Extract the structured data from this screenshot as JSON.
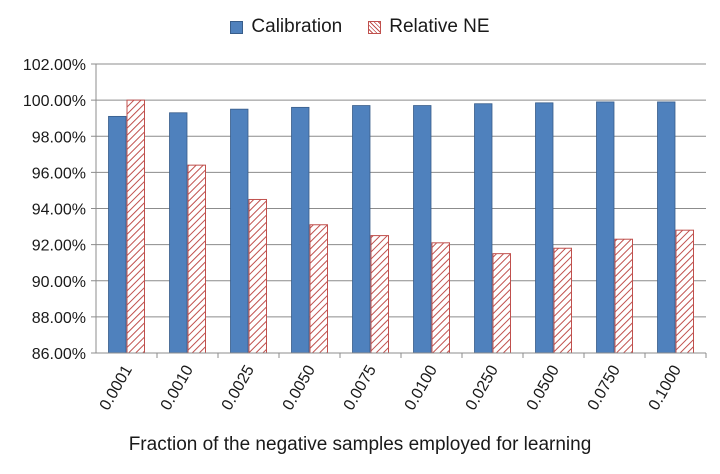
{
  "chart_data": {
    "type": "bar",
    "title": "",
    "xlabel": "Fraction of the negative samples employed for learning",
    "ylabel": "",
    "ylim": [
      86,
      102
    ],
    "y_step": 2,
    "y_tick_labels": [
      "86.00%",
      "88.00%",
      "90.00%",
      "92.00%",
      "94.00%",
      "96.00%",
      "98.00%",
      "100.00%",
      "102.00%"
    ],
    "categories": [
      "0.0001",
      "0.0010",
      "0.0025",
      "0.0050",
      "0.0075",
      "0.0100",
      "0.0250",
      "0.0500",
      "0.0750",
      "0.1000"
    ],
    "series": [
      {
        "name": "Calibration",
        "color": "#4f81bd",
        "values": [
          99.1,
          99.3,
          99.5,
          99.6,
          99.7,
          99.7,
          99.8,
          99.85,
          99.9,
          99.9
        ]
      },
      {
        "name": "Relative NE",
        "color": "#c0504d",
        "values": [
          100.0,
          96.4,
          94.5,
          93.1,
          92.5,
          92.1,
          91.5,
          91.8,
          92.3,
          92.8
        ]
      }
    ],
    "grid": true,
    "legend_position": "top-center"
  }
}
